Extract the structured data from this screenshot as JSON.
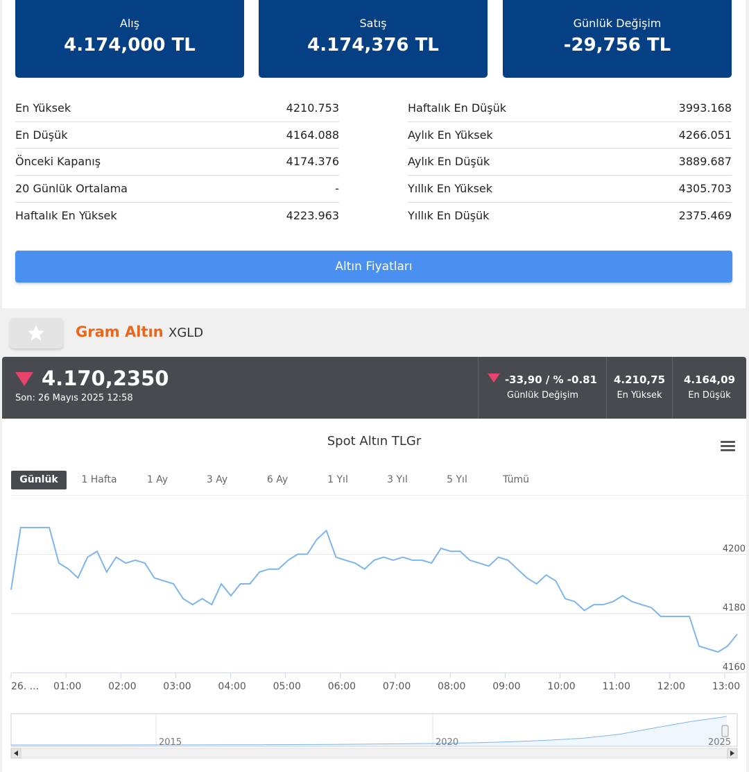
{
  "cards": {
    "buy": {
      "label": "Alış",
      "value": "4.174,000 TL"
    },
    "sell": {
      "label": "Satış",
      "value": "4.174,376 TL"
    },
    "change": {
      "label": "Günlük Değişim",
      "value": "-29,756 TL"
    }
  },
  "stats_left": [
    {
      "label": "En Yüksek",
      "value": "4210.753"
    },
    {
      "label": "En Düşük",
      "value": "4164.088"
    },
    {
      "label": "Önceki Kapanış",
      "value": "4174.376"
    },
    {
      "label": "20 Günlük Ortalama",
      "value": "-"
    },
    {
      "label": "Haftalık En Yüksek",
      "value": "4223.963"
    }
  ],
  "stats_right": [
    {
      "label": "Haftalık En Düşük",
      "value": "3993.168"
    },
    {
      "label": "Aylık En Yüksek",
      "value": "4266.051"
    },
    {
      "label": "Aylık En Düşük",
      "value": "3889.687"
    },
    {
      "label": "Yıllık En Yüksek",
      "value": "4305.703"
    },
    {
      "label": "Yıllık En Düşük",
      "value": "2375.469"
    }
  ],
  "gold_prices_button": "Altın Fiyatları",
  "instrument": {
    "name": "Gram Altın",
    "code": "XGLD"
  },
  "ticker": {
    "price": "4.170,2350",
    "timestamp": "Son: 26 Mayıs 2025 12:58",
    "change_value": "-33,90 / % -0.81",
    "change_label": "Günlük Değişim",
    "high_value": "4.210,75",
    "high_label": "En Yüksek",
    "low_value": "4.164,09",
    "low_label": "En Düşük"
  },
  "colors": {
    "brand_blue": "#053f84",
    "accent_orange": "#e8671b",
    "button_blue": "#4a90f0",
    "line": "#7cb5ec",
    "down_red": "#e8436c"
  },
  "icons": {
    "favorite": "star-icon",
    "menu": "hamburger-menu-icon",
    "direction": "down-triangle-icon"
  },
  "range_buttons": [
    "Günlük",
    "1 Hafta",
    "1 Ay",
    "3 Ay",
    "6 Ay",
    "1 Yıl",
    "3 Yıl",
    "5 Yıl",
    "Tümü"
  ],
  "active_range": "Günlük",
  "chart_data": {
    "type": "line",
    "title": "Spot Altın TLGr",
    "series": [
      {
        "values": [
          4188,
          4209,
          4209,
          4209,
          4209,
          4197,
          4195,
          4192,
          4199,
          4201,
          4194,
          4199,
          4197,
          4198,
          4197,
          4192,
          4191,
          4190,
          4185,
          4183,
          4185,
          4183,
          4190,
          4186,
          4190,
          4190,
          4194,
          4195,
          4195,
          4198,
          4200,
          4200,
          4205,
          4208,
          4199,
          4198,
          4197,
          4195,
          4198,
          4199,
          4198,
          4199,
          4198,
          4198,
          4197,
          4202,
          4201,
          4201,
          4198,
          4197,
          4196,
          4199,
          4198,
          4195,
          4192,
          4190,
          4193,
          4191,
          4185,
          4184,
          4181,
          4183,
          4183,
          4184,
          4186,
          4184,
          4183,
          4182,
          4179,
          4179,
          4179,
          4179,
          4169,
          4168,
          4167,
          4169,
          4173
        ]
      }
    ],
    "x_ticks": [
      "26. ...",
      "01:00",
      "02:00",
      "03:00",
      "04:00",
      "05:00",
      "06:00",
      "07:00",
      "08:00",
      "09:00",
      "10:00",
      "11:00",
      "12:00",
      "13:00"
    ],
    "y_ticks": [
      4160,
      4180,
      4200
    ],
    "ylim": [
      4160,
      4220
    ],
    "navigator_labels": [
      "2015",
      "2020",
      "2025"
    ],
    "navigator_values": [
      1,
      1,
      1,
      1.02,
      1.05,
      1.1,
      1.2,
      1.3,
      1.5,
      1.8,
      2.2,
      2.6,
      3.2,
      4.0,
      5.5,
      7.5,
      10.5,
      16,
      25,
      34,
      41
    ]
  }
}
